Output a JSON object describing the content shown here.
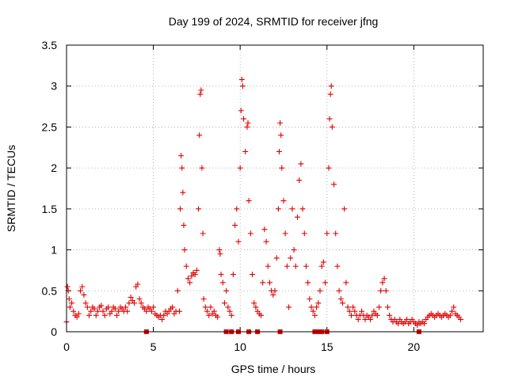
{
  "chart_data": {
    "type": "scatter",
    "title": "Day 199 of 2024, SRMTID for receiver jfng",
    "xlabel": "GPS time / hours",
    "ylabel": "SRMTID / TECUs",
    "xlim": [
      0,
      24
    ],
    "ylim": [
      0,
      3.5
    ],
    "x_ticks": [
      0,
      5,
      10,
      15,
      20
    ],
    "x_tick_labels": [
      "0",
      "5",
      "10",
      "15",
      "20"
    ],
    "y_ticks": [
      0,
      0.5,
      1,
      1.5,
      2,
      2.5,
      3,
      3.5
    ],
    "y_tick_labels": [
      "0",
      "0.5",
      "1",
      "1.5",
      "2",
      "2.5",
      "3",
      "3.5"
    ],
    "grid": true,
    "marker": "+",
    "marker_color": "#e00000",
    "series": [
      {
        "name": "SRMTID",
        "points": [
          [
            0.0,
            0.12
          ],
          [
            0.05,
            0.55
          ],
          [
            0.1,
            0.5
          ],
          [
            0.15,
            0.4
          ],
          [
            0.2,
            0.3
          ],
          [
            0.3,
            0.35
          ],
          [
            0.4,
            0.25
          ],
          [
            0.5,
            0.2
          ],
          [
            0.6,
            0.18
          ],
          [
            0.7,
            0.22
          ],
          [
            0.8,
            0.5
          ],
          [
            0.9,
            0.55
          ],
          [
            1.0,
            0.45
          ],
          [
            1.1,
            0.35
          ],
          [
            1.2,
            0.3
          ],
          [
            1.3,
            0.2
          ],
          [
            1.4,
            0.25
          ],
          [
            1.5,
            0.3
          ],
          [
            1.6,
            0.28
          ],
          [
            1.7,
            0.2
          ],
          [
            1.8,
            0.25
          ],
          [
            1.9,
            0.3
          ],
          [
            2.0,
            0.32
          ],
          [
            2.1,
            0.25
          ],
          [
            2.2,
            0.2
          ],
          [
            2.3,
            0.28
          ],
          [
            2.4,
            0.3
          ],
          [
            2.5,
            0.22
          ],
          [
            2.6,
            0.25
          ],
          [
            2.7,
            0.3
          ],
          [
            2.8,
            0.28
          ],
          [
            2.9,
            0.2
          ],
          [
            3.0,
            0.25
          ],
          [
            3.1,
            0.3
          ],
          [
            3.2,
            0.28
          ],
          [
            3.3,
            0.25
          ],
          [
            3.4,
            0.3
          ],
          [
            3.5,
            0.25
          ],
          [
            3.6,
            0.35
          ],
          [
            3.7,
            0.42
          ],
          [
            3.8,
            0.38
          ],
          [
            3.9,
            0.35
          ],
          [
            4.0,
            0.55
          ],
          [
            4.1,
            0.58
          ],
          [
            4.2,
            0.4
          ],
          [
            4.3,
            0.35
          ],
          [
            4.4,
            0.3
          ],
          [
            4.5,
            0.28
          ],
          [
            4.6,
            0.25
          ],
          [
            4.7,
            0.3
          ],
          [
            4.8,
            0.28
          ],
          [
            4.9,
            0.25
          ],
          [
            5.0,
            0.3
          ],
          [
            5.1,
            0.22
          ],
          [
            5.2,
            0.2
          ],
          [
            5.3,
            0.18
          ],
          [
            5.4,
            0.2
          ],
          [
            5.5,
            0.15
          ],
          [
            5.6,
            0.2
          ],
          [
            5.7,
            0.25
          ],
          [
            5.8,
            0.22
          ],
          [
            5.9,
            0.25
          ],
          [
            6.0,
            0.28
          ],
          [
            6.1,
            0.3
          ],
          [
            6.2,
            0.22
          ],
          [
            6.3,
            0.25
          ],
          [
            6.4,
            0.5
          ],
          [
            6.5,
            0.25
          ],
          [
            6.55,
            1.5
          ],
          [
            6.6,
            2.15
          ],
          [
            6.65,
            2.0
          ],
          [
            6.7,
            1.7
          ],
          [
            6.75,
            1.3
          ],
          [
            6.8,
            1.0
          ],
          [
            6.9,
            0.8
          ],
          [
            7.0,
            0.65
          ],
          [
            7.1,
            0.6
          ],
          [
            7.2,
            0.68
          ],
          [
            7.3,
            0.72
          ],
          [
            7.4,
            0.7
          ],
          [
            7.5,
            0.75
          ],
          [
            7.6,
            1.5
          ],
          [
            7.65,
            2.4
          ],
          [
            7.7,
            2.9
          ],
          [
            7.75,
            2.95
          ],
          [
            7.8,
            2.0
          ],
          [
            7.85,
            1.2
          ],
          [
            7.9,
            0.4
          ],
          [
            8.0,
            0.3
          ],
          [
            8.1,
            0.25
          ],
          [
            8.2,
            0.2
          ],
          [
            8.3,
            0.3
          ],
          [
            8.4,
            0.22
          ],
          [
            8.5,
            0.25
          ],
          [
            8.6,
            0.2
          ],
          [
            8.7,
            0.18
          ],
          [
            8.8,
            1.0
          ],
          [
            8.85,
            0.95
          ],
          [
            8.9,
            0.7
          ],
          [
            9.0,
            0.6
          ],
          [
            9.1,
            0.35
          ],
          [
            9.2,
            0.5
          ],
          [
            9.3,
            0.3
          ],
          [
            9.4,
            0.25
          ],
          [
            9.5,
            0.2
          ],
          [
            9.6,
            0.7
          ],
          [
            9.7,
            1.3
          ],
          [
            9.8,
            1.5
          ],
          [
            9.9,
            1.1
          ],
          [
            10.0,
            2.0
          ],
          [
            10.05,
            2.7
          ],
          [
            10.1,
            3.08
          ],
          [
            10.15,
            3.0
          ],
          [
            10.2,
            2.6
          ],
          [
            10.3,
            2.2
          ],
          [
            10.4,
            2.5
          ],
          [
            10.45,
            2.55
          ],
          [
            10.5,
            1.6
          ],
          [
            10.6,
            1.2
          ],
          [
            10.7,
            0.7
          ],
          [
            10.8,
            0.35
          ],
          [
            10.9,
            0.3
          ],
          [
            11.0,
            0.25
          ],
          [
            11.1,
            0.22
          ],
          [
            11.2,
            0.2
          ],
          [
            11.3,
            0.6
          ],
          [
            11.4,
            1.25
          ],
          [
            11.5,
            1.1
          ],
          [
            11.6,
            0.8
          ],
          [
            11.7,
            0.6
          ],
          [
            11.8,
            0.5
          ],
          [
            11.9,
            0.45
          ],
          [
            12.0,
            0.5
          ],
          [
            12.1,
            0.9
          ],
          [
            12.2,
            1.5
          ],
          [
            12.25,
            2.2
          ],
          [
            12.3,
            2.55
          ],
          [
            12.35,
            2.4
          ],
          [
            12.4,
            2.0
          ],
          [
            12.5,
            1.6
          ],
          [
            12.6,
            1.2
          ],
          [
            12.7,
            0.8
          ],
          [
            12.8,
            0.3
          ],
          [
            12.9,
            0.9
          ],
          [
            13.0,
            1.5
          ],
          [
            13.1,
            1.0
          ],
          [
            13.2,
            0.8
          ],
          [
            13.3,
            1.4
          ],
          [
            13.4,
            1.85
          ],
          [
            13.5,
            2.05
          ],
          [
            13.6,
            1.5
          ],
          [
            13.7,
            1.2
          ],
          [
            13.8,
            0.8
          ],
          [
            13.9,
            0.6
          ],
          [
            14.0,
            0.4
          ],
          [
            14.1,
            0.3
          ],
          [
            14.2,
            0.25
          ],
          [
            14.3,
            0.2
          ],
          [
            14.4,
            0.3
          ],
          [
            14.5,
            0.35
          ],
          [
            14.6,
            0.5
          ],
          [
            14.7,
            0.8
          ],
          [
            14.8,
            0.85
          ],
          [
            14.9,
            0.6
          ],
          [
            15.0,
            1.2
          ],
          [
            15.1,
            2.0
          ],
          [
            15.15,
            2.6
          ],
          [
            15.2,
            2.9
          ],
          [
            15.25,
            3.0
          ],
          [
            15.3,
            2.5
          ],
          [
            15.4,
            1.8
          ],
          [
            15.5,
            1.2
          ],
          [
            15.6,
            0.8
          ],
          [
            15.7,
            0.5
          ],
          [
            15.8,
            0.4
          ],
          [
            15.9,
            0.35
          ],
          [
            16.0,
            1.5
          ],
          [
            16.1,
            0.6
          ],
          [
            16.2,
            0.3
          ],
          [
            16.3,
            0.25
          ],
          [
            16.4,
            0.2
          ],
          [
            16.5,
            0.3
          ],
          [
            16.6,
            0.25
          ],
          [
            16.7,
            0.2
          ],
          [
            16.8,
            0.15
          ],
          [
            16.9,
            0.2
          ],
          [
            17.0,
            0.25
          ],
          [
            17.1,
            0.2
          ],
          [
            17.2,
            0.15
          ],
          [
            17.3,
            0.2
          ],
          [
            17.4,
            0.18
          ],
          [
            17.5,
            0.15
          ],
          [
            17.6,
            0.2
          ],
          [
            17.7,
            0.25
          ],
          [
            17.8,
            0.22
          ],
          [
            17.9,
            0.2
          ],
          [
            18.0,
            0.3
          ],
          [
            18.1,
            0.5
          ],
          [
            18.2,
            0.6
          ],
          [
            18.3,
            0.65
          ],
          [
            18.4,
            0.5
          ],
          [
            18.5,
            0.3
          ],
          [
            18.6,
            0.2
          ],
          [
            18.7,
            0.15
          ],
          [
            18.8,
            0.12
          ],
          [
            18.9,
            0.15
          ],
          [
            19.0,
            0.12
          ],
          [
            19.1,
            0.1
          ],
          [
            19.2,
            0.15
          ],
          [
            19.3,
            0.12
          ],
          [
            19.4,
            0.1
          ],
          [
            19.5,
            0.12
          ],
          [
            19.6,
            0.15
          ],
          [
            19.7,
            0.1
          ],
          [
            19.8,
            0.12
          ],
          [
            19.9,
            0.15
          ],
          [
            20.0,
            0.12
          ],
          [
            20.1,
            0.1
          ],
          [
            20.2,
            0.08
          ],
          [
            20.3,
            0.12
          ],
          [
            20.4,
            0.1
          ],
          [
            20.5,
            0.12
          ],
          [
            20.6,
            0.1
          ],
          [
            20.7,
            0.15
          ],
          [
            20.8,
            0.18
          ],
          [
            20.9,
            0.2
          ],
          [
            21.0,
            0.22
          ],
          [
            21.1,
            0.2
          ],
          [
            21.2,
            0.18
          ],
          [
            21.3,
            0.2
          ],
          [
            21.4,
            0.22
          ],
          [
            21.5,
            0.2
          ],
          [
            21.6,
            0.18
          ],
          [
            21.7,
            0.2
          ],
          [
            21.8,
            0.22
          ],
          [
            21.9,
            0.2
          ],
          [
            22.0,
            0.18
          ],
          [
            22.1,
            0.2
          ],
          [
            22.2,
            0.25
          ],
          [
            22.3,
            0.3
          ],
          [
            22.4,
            0.22
          ],
          [
            22.5,
            0.2
          ],
          [
            22.6,
            0.18
          ],
          [
            22.7,
            0.15
          ]
        ],
        "zero_markers": [
          4.6,
          9.2,
          9.5,
          9.9,
          10.5,
          11.0,
          12.3,
          14.3,
          14.5,
          14.7,
          15.0,
          20.3
        ]
      }
    ]
  }
}
